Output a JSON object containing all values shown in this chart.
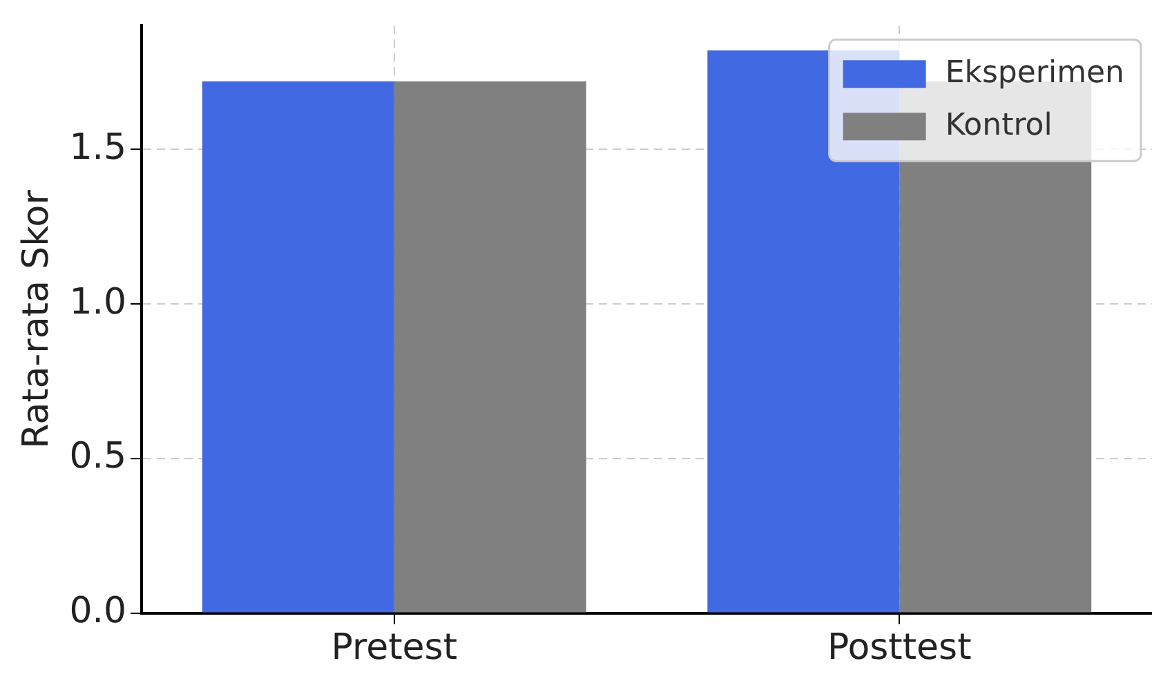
{
  "chart_data": {
    "type": "bar",
    "ylabel": "Rata-rata Skor",
    "categories": [
      "Pretest",
      "Posttest"
    ],
    "series": [
      {
        "name": "Eksperimen",
        "color": "#4169e1",
        "values": [
          1.72,
          1.82
        ]
      },
      {
        "name": "Kontrol",
        "color": "#808080",
        "values": [
          1.72,
          1.72
        ]
      }
    ],
    "ylim": [
      0,
      1.9
    ],
    "yticks": [
      {
        "value": 0,
        "label": "0.0"
      },
      {
        "value": 0.5,
        "label": "0.5"
      },
      {
        "value": 1,
        "label": "1.0"
      },
      {
        "value": 1.5,
        "label": "1.5"
      }
    ],
    "grid": true,
    "legend": "top right"
  }
}
